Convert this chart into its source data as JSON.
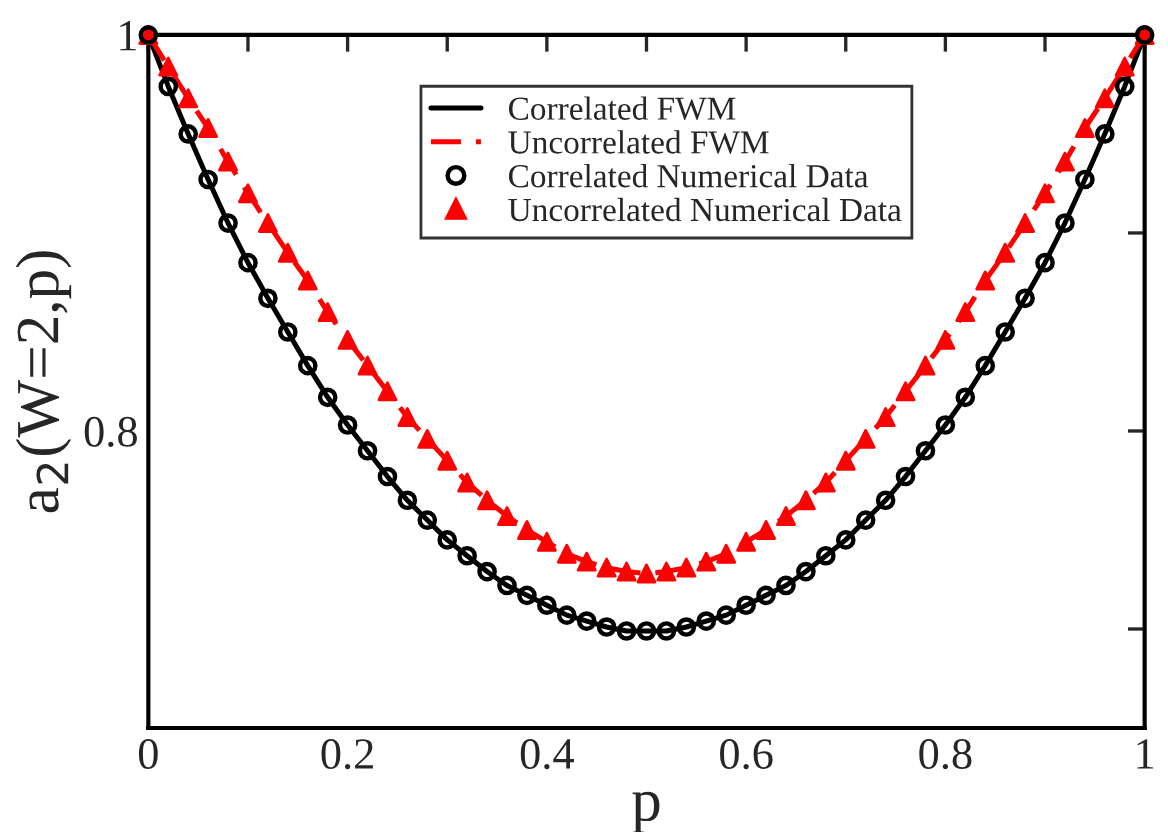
{
  "chart_data": {
    "type": "line",
    "xlabel": "p",
    "ylabel": "a$_{2}$(W=2,p)",
    "x": [
      0,
      0.02,
      0.04,
      0.06,
      0.08,
      0.1,
      0.12,
      0.14,
      0.16,
      0.18,
      0.2,
      0.22,
      0.24,
      0.26,
      0.28,
      0.3,
      0.32,
      0.34,
      0.36,
      0.38,
      0.4,
      0.42,
      0.44,
      0.46,
      0.48,
      0.5,
      0.52,
      0.54,
      0.56,
      0.58,
      0.6,
      0.62,
      0.64,
      0.66,
      0.68,
      0.7,
      0.72,
      0.74,
      0.76,
      0.78,
      0.8,
      0.82,
      0.84,
      0.86,
      0.88,
      0.9,
      0.92,
      0.94,
      0.96,
      0.98,
      1
    ],
    "series": [
      {
        "name": "Correlated FWM",
        "color": "#000000",
        "line_style": "solid",
        "marker": "none",
        "values": [
          1,
          0.974,
          0.95,
          0.927,
          0.905,
          0.885,
          0.867,
          0.85,
          0.833,
          0.817,
          0.803,
          0.79,
          0.777,
          0.765,
          0.755,
          0.745,
          0.737,
          0.729,
          0.722,
          0.717,
          0.712,
          0.707,
          0.704,
          0.701,
          0.699,
          0.699,
          0.699,
          0.701,
          0.704,
          0.707,
          0.712,
          0.717,
          0.722,
          0.729,
          0.737,
          0.745,
          0.755,
          0.765,
          0.777,
          0.79,
          0.803,
          0.817,
          0.833,
          0.85,
          0.867,
          0.885,
          0.905,
          0.927,
          0.95,
          0.974,
          1
        ]
      },
      {
        "name": "Uncorrelated FWM",
        "color": "#ff0000",
        "line_style": "dashed",
        "marker": "none",
        "values": [
          1,
          0.984,
          0.968,
          0.953,
          0.936,
          0.92,
          0.905,
          0.89,
          0.876,
          0.86,
          0.846,
          0.833,
          0.82,
          0.807,
          0.796,
          0.785,
          0.774,
          0.765,
          0.757,
          0.75,
          0.744,
          0.738,
          0.734,
          0.731,
          0.729,
          0.728,
          0.729,
          0.731,
          0.734,
          0.738,
          0.744,
          0.75,
          0.757,
          0.765,
          0.774,
          0.785,
          0.796,
          0.807,
          0.82,
          0.833,
          0.846,
          0.86,
          0.876,
          0.89,
          0.905,
          0.92,
          0.936,
          0.953,
          0.968,
          0.984,
          1
        ]
      },
      {
        "name": "Correlated Numerical Data",
        "type": "scatter",
        "color": "#000000",
        "marker": "circle",
        "values": [
          1,
          0.974,
          0.95,
          0.927,
          0.905,
          0.885,
          0.867,
          0.85,
          0.833,
          0.817,
          0.803,
          0.79,
          0.777,
          0.765,
          0.755,
          0.745,
          0.737,
          0.729,
          0.722,
          0.717,
          0.712,
          0.707,
          0.704,
          0.701,
          0.699,
          0.699,
          0.699,
          0.701,
          0.704,
          0.707,
          0.712,
          0.717,
          0.722,
          0.729,
          0.737,
          0.745,
          0.755,
          0.765,
          0.777,
          0.79,
          0.803,
          0.817,
          0.833,
          0.85,
          0.867,
          0.885,
          0.905,
          0.927,
          0.95,
          0.974,
          1
        ]
      },
      {
        "name": "Uncorrelated Numerical Data",
        "type": "scatter",
        "color": "#ff0000",
        "marker": "triangle",
        "values": [
          1,
          0.984,
          0.968,
          0.953,
          0.936,
          0.92,
          0.905,
          0.89,
          0.876,
          0.86,
          0.846,
          0.833,
          0.82,
          0.807,
          0.796,
          0.785,
          0.774,
          0.765,
          0.757,
          0.75,
          0.744,
          0.738,
          0.734,
          0.731,
          0.729,
          0.728,
          0.729,
          0.731,
          0.734,
          0.738,
          0.744,
          0.75,
          0.757,
          0.765,
          0.774,
          0.785,
          0.796,
          0.807,
          0.82,
          0.833,
          0.846,
          0.86,
          0.876,
          0.89,
          0.905,
          0.92,
          0.936,
          0.953,
          0.968,
          0.984,
          1
        ]
      }
    ],
    "xlim": [
      0,
      1
    ],
    "ylim": [
      0.65,
      1
    ],
    "xticks": [
      0,
      {
        "value": 0.1,
        "label": null
      },
      0.2,
      {
        "value": 0.3,
        "label": null
      },
      0.4,
      {
        "value": 0.5,
        "label": null
      },
      0.6,
      {
        "value": 0.7,
        "label": null
      },
      0.8,
      {
        "value": 0.9,
        "label": null
      },
      1
    ],
    "yticks": [
      {
        "value": 0.7,
        "label": null
      },
      0.8,
      {
        "value": 0.9,
        "label": null
      },
      1
    ],
    "grid": false,
    "legend": "top"
  }
}
